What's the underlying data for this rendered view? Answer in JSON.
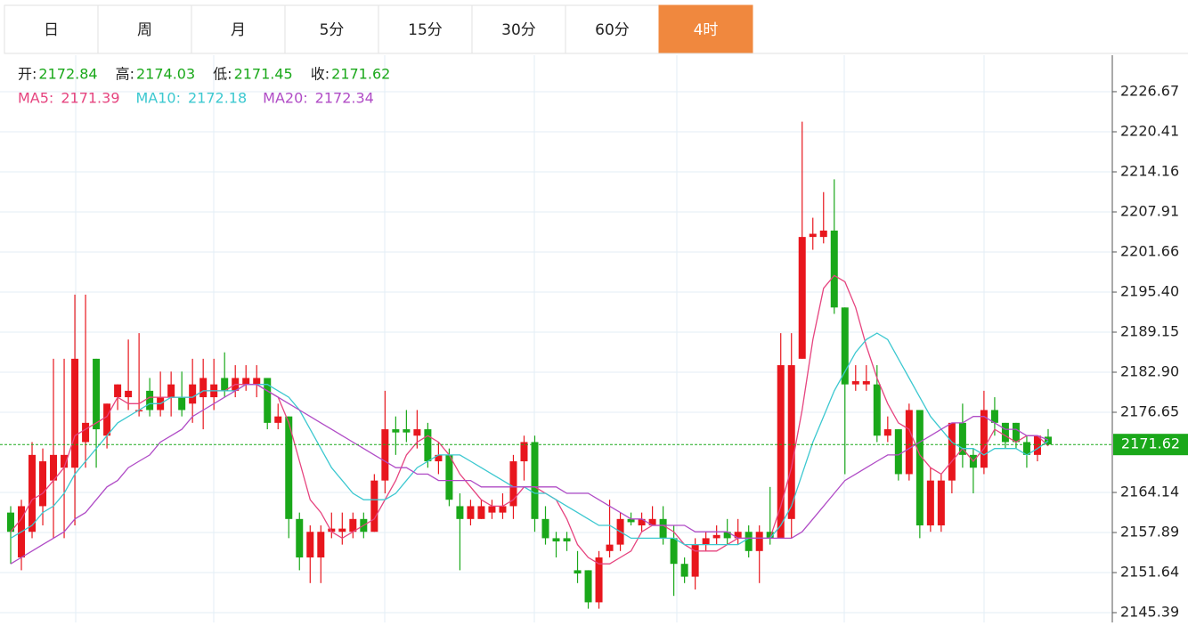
{
  "tabs": [
    "日",
    "周",
    "月",
    "5分",
    "15分",
    "30分",
    "60分",
    "4时"
  ],
  "active_tab": 7,
  "header": {
    "quote": [
      {
        "label": "开:",
        "value": "2172.84"
      },
      {
        "label": "高:",
        "value": "2174.03"
      },
      {
        "label": "低:",
        "value": "2171.45"
      },
      {
        "label": "收:",
        "value": "2171.62"
      }
    ],
    "ma": [
      {
        "label": "MA5:",
        "value": "2171.39"
      },
      {
        "label": "MA10:",
        "value": "2172.18"
      },
      {
        "label": "MA20:",
        "value": "2172.34"
      }
    ]
  },
  "chart_data": {
    "type": "candlestick",
    "up_color": "#e8161d",
    "down_color": "#1aa81a",
    "last_price": 2171.62,
    "last_color": "#1aa81a",
    "ylim": [
      2143.86,
      2232.36
    ],
    "yticks": [
      2226.67,
      2220.41,
      2214.16,
      2207.91,
      2201.66,
      {
        "value": 2195.4,
        "label": "2195.40"
      },
      2189.15,
      {
        "value": 2182.9,
        "label": "2182.90"
      },
      2176.65,
      2164.14,
      2157.89,
      2151.64,
      2145.39
    ],
    "open": [
      2161,
      2154,
      2158,
      2162,
      2166,
      2168,
      2168,
      2172,
      2185,
      2173,
      2179,
      2179,
      2177,
      2180,
      2177,
      2179,
      2179,
      2178,
      2179,
      2179,
      2182,
      2180,
      2181,
      2181,
      2182,
      2175,
      2176,
      2160,
      2154,
      2154,
      2158,
      2158,
      2158,
      2160,
      2158,
      2166,
      2174,
      2174,
      2173,
      2174,
      2169,
      2170,
      2162,
      2160,
      2160,
      2161,
      2161,
      2162,
      2169,
      2172,
      2160,
      2157,
      2157,
      2152,
      2152,
      2147,
      2155,
      2156,
      2160,
      2159,
      2159,
      2160,
      2157,
      2153,
      2151,
      2156,
      2157,
      2158,
      2157,
      2158,
      2155,
      2158,
      2157,
      2160,
      2185,
      2204,
      2204,
      2205,
      2193,
      2181,
      2181,
      2181,
      2173,
      2174,
      2167,
      2177,
      2159,
      2159,
      2166,
      2175,
      2170,
      2168,
      2177,
      2175,
      2175,
      2172,
      2170,
      2172.84
    ],
    "high": [
      2162,
      2163,
      2172,
      2171,
      2185,
      2185,
      2195,
      2195,
      2185,
      2178,
      2181,
      2188,
      2189,
      2182,
      2183,
      2183,
      2183,
      2185,
      2185,
      2185,
      2186,
      2184,
      2184,
      2184,
      2182,
      2178,
      2176,
      2161,
      2159,
      2159,
      2161,
      2161,
      2161,
      2161,
      2167,
      2180,
      2176,
      2177,
      2177,
      2175,
      2172,
      2171,
      2164,
      2163,
      2163,
      2163,
      2164,
      2170,
      2173,
      2173,
      2162,
      2158,
      2158,
      2155,
      2152,
      2155,
      2163,
      2161,
      2161,
      2161,
      2162,
      2162,
      2159,
      2154,
      2157,
      2158,
      2159,
      2160,
      2160,
      2159,
      2159,
      2165,
      2189,
      2189,
      2222,
      2207,
      2211,
      2213,
      2193,
      2184,
      2184,
      2184,
      2176,
      2174,
      2178,
      2177,
      2168,
      2167,
      2175,
      2178,
      2171,
      2180,
      2179,
      2175,
      2175,
      2173,
      2173,
      2174.03
    ],
    "low": [
      2153,
      2152,
      2157,
      2159,
      2157,
      2157,
      2159,
      2168,
      2168,
      2171,
      2177,
      2177,
      2176,
      2176,
      2176,
      2176,
      2176,
      2175,
      2174,
      2177,
      2179,
      2179,
      2180,
      2179,
      2174,
      2174,
      2157,
      2152,
      2150,
      2150,
      2157,
      2156,
      2157,
      2157,
      2158,
      2164,
      2170,
      2172,
      2171,
      2168,
      2167,
      2162,
      2152,
      2159,
      2160,
      2160,
      2160,
      2160,
      2166,
      2158,
      2156,
      2154,
      2155,
      2150,
      2146,
      2146,
      2154,
      2155,
      2159,
      2158,
      2159,
      2156,
      2148,
      2150,
      2149,
      2155,
      2156,
      2156,
      2156,
      2154,
      2150,
      2156,
      2157,
      2157,
      2185,
      2202,
      2203,
      2192,
      2167,
      2180,
      2180,
      2172,
      2172,
      2166,
      2166,
      2157,
      2158,
      2158,
      2164,
      2168,
      2164,
      2167,
      2173,
      2171,
      2171,
      2168,
      2169,
      2171.45
    ],
    "close": [
      2158,
      2162,
      2170,
      2169,
      2170,
      2170,
      2185,
      2175,
      2174,
      2178,
      2181,
      2180,
      2177,
      2177,
      2179,
      2181,
      2177,
      2181,
      2182,
      2181,
      2180,
      2182,
      2182,
      2182,
      2175,
      2176,
      2160,
      2154,
      2158,
      2158,
      2158.5,
      2158.5,
      2160,
      2158,
      2166,
      2174,
      2173.5,
      2173.5,
      2174,
      2169,
      2170,
      2163,
      2160,
      2162,
      2162,
      2162,
      2162,
      2169,
      2172,
      2160,
      2157,
      2156.5,
      2156.5,
      2151.5,
      2147,
      2154,
      2156,
      2160,
      2159.5,
      2160,
      2160,
      2157,
      2153,
      2151,
      2156,
      2157,
      2157.5,
      2157,
      2158,
      2155,
      2158,
      2157,
      2184,
      2184,
      2204,
      2204.5,
      2205,
      2193,
      2181,
      2181.5,
      2181.5,
      2173,
      2174,
      2167,
      2177,
      2159,
      2166,
      2166,
      2175,
      2170,
      2168,
      2177,
      2175,
      2172,
      2172,
      2170,
      2173,
      2171.62
    ],
    "series": [
      {
        "name": "MA5",
        "color": "#e6447f",
        "values": [
          2158,
          2160,
          2163,
          2164,
          2166,
          2168,
          2173,
          2174,
          2175,
          2176,
          2179,
          2178,
          2178,
          2179,
          2179,
          2179,
          2179,
          2179,
          2180,
          2180,
          2180,
          2181,
          2181,
          2181,
          2180,
          2179,
          2175,
          2169,
          2163,
          2161,
          2158,
          2157,
          2158,
          2159,
          2160,
          2163,
          2166,
          2170,
          2172,
          2173,
          2172,
          2170,
          2167,
          2165,
          2163,
          2162,
          2162,
          2163,
          2165,
          2165,
          2164,
          2163,
          2160,
          2156,
          2154,
          2153,
          2153,
          2154,
          2155,
          2158,
          2159,
          2159,
          2158,
          2156,
          2155,
          2155,
          2155,
          2156,
          2157,
          2157,
          2157,
          2157,
          2162,
          2168,
          2177,
          2188,
          2196,
          2198,
          2197,
          2193,
          2187,
          2182,
          2178,
          2175,
          2174,
          2170,
          2168,
          2167,
          2169,
          2171,
          2169,
          2171,
          2174,
          2173,
          2172,
          2173,
          2173,
          2171.39
        ]
      },
      {
        "name": "MA10",
        "color": "#3cc8d0",
        "values": [
          2157,
          2158,
          2159,
          2161,
          2162,
          2164,
          2167,
          2169,
          2171,
          2173,
          2175,
          2176,
          2177,
          2178,
          2178,
          2179,
          2179,
          2179,
          2180,
          2180,
          2180,
          2180,
          2181,
          2181,
          2181,
          2180,
          2179,
          2177,
          2174,
          2171,
          2168,
          2166,
          2164,
          2163,
          2163,
          2163,
          2164,
          2166,
          2168,
          2169,
          2170,
          2170,
          2170,
          2169,
          2168,
          2167,
          2166,
          2165,
          2165,
          2164,
          2164,
          2163,
          2162,
          2161,
          2160,
          2159,
          2159,
          2158,
          2157,
          2157,
          2157,
          2157,
          2157,
          2156,
          2156,
          2156,
          2156,
          2156,
          2156,
          2157,
          2157,
          2157,
          2159,
          2162,
          2167,
          2172,
          2176,
          2180,
          2183,
          2186,
          2188,
          2189,
          2188,
          2185,
          2182,
          2179,
          2176,
          2174,
          2172,
          2171,
          2171,
          2170,
          2171,
          2171,
          2171,
          2170,
          2171,
          2172.18
        ]
      },
      {
        "name": "MA20",
        "color": "#b04cc6",
        "values": [
          2153,
          2154,
          2155,
          2156,
          2157,
          2158,
          2160,
          2161,
          2163,
          2165,
          2166,
          2168,
          2169,
          2170,
          2172,
          2173,
          2174,
          2176,
          2177,
          2178,
          2179,
          2180,
          2181,
          2181,
          2180,
          2179,
          2178,
          2177,
          2176,
          2175,
          2174,
          2173,
          2172,
          2171,
          2170,
          2169,
          2168,
          2168,
          2167,
          2167,
          2166,
          2166,
          2166,
          2166,
          2165,
          2165,
          2165,
          2165,
          2165,
          2165,
          2165,
          2165,
          2164,
          2164,
          2164,
          2163,
          2162,
          2161,
          2160,
          2160,
          2159,
          2159,
          2159,
          2159,
          2158,
          2158,
          2158,
          2158,
          2157,
          2157,
          2157,
          2157,
          2157,
          2157,
          2158,
          2160,
          2162,
          2164,
          2166,
          2167,
          2168,
          2169,
          2170,
          2170,
          2171,
          2172,
          2173,
          2174,
          2175,
          2175,
          2176,
          2176,
          2175,
          2174,
          2174,
          2173,
          2173,
          2172.34
        ]
      }
    ]
  }
}
